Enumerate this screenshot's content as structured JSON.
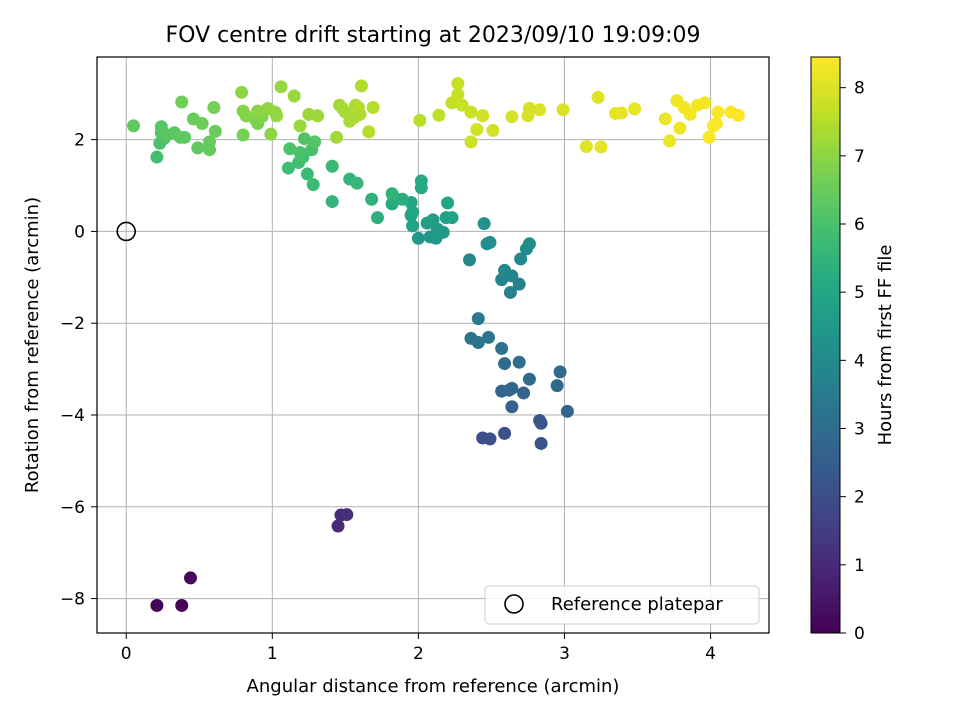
{
  "chart_data": {
    "type": "scatter",
    "title": "FOV centre drift starting at 2023/09/10 19:09:09",
    "xlabel": "Angular distance from reference (arcmin)",
    "ylabel": "Rotation from reference (arcmin)",
    "xlim": [
      -0.2,
      4.4
    ],
    "ylim": [
      -8.75,
      3.8
    ],
    "xticks": [
      0,
      1,
      2,
      3,
      4
    ],
    "yticks": [
      -8,
      -6,
      -4,
      -2,
      0,
      2
    ],
    "xtick_labels": [
      "0",
      "1",
      "2",
      "3",
      "4"
    ],
    "ytick_labels": [
      "−8",
      "−6",
      "−4",
      "−2",
      "0",
      "2"
    ],
    "grid": true,
    "colormap": "viridis",
    "colorbar": {
      "label": "Hours from first FF file",
      "range": [
        0,
        8.45
      ],
      "ticks": [
        0,
        1,
        2,
        3,
        4,
        5,
        6,
        7,
        8
      ],
      "tick_labels": [
        "0",
        "1",
        "2",
        "3",
        "4",
        "5",
        "6",
        "7",
        "8"
      ]
    },
    "legend": {
      "position": "lower-right",
      "entries": [
        {
          "label": "Reference platepar",
          "marker": "open-circle"
        }
      ]
    },
    "reference_point": {
      "x": 0,
      "y": 0
    },
    "points": [
      {
        "x": 0.21,
        "y": -8.15,
        "c": 0.05
      },
      {
        "x": 0.38,
        "y": -8.15,
        "c": 0.1
      },
      {
        "x": 0.44,
        "y": -7.55,
        "c": 0.2
      },
      {
        "x": 1.45,
        "y": -6.42,
        "c": 1.0
      },
      {
        "x": 1.47,
        "y": -6.18,
        "c": 1.05
      },
      {
        "x": 1.51,
        "y": -6.17,
        "c": 1.1
      },
      {
        "x": 2.44,
        "y": -4.5,
        "c": 2.0
      },
      {
        "x": 2.49,
        "y": -4.52,
        "c": 2.05
      },
      {
        "x": 2.59,
        "y": -4.4,
        "c": 2.1
      },
      {
        "x": 2.83,
        "y": -4.12,
        "c": 2.2
      },
      {
        "x": 2.84,
        "y": -4.62,
        "c": 2.15
      },
      {
        "x": 2.84,
        "y": -4.18,
        "c": 2.25
      },
      {
        "x": 2.64,
        "y": -3.82,
        "c": 2.6
      },
      {
        "x": 2.72,
        "y": -3.52,
        "c": 2.7
      },
      {
        "x": 2.57,
        "y": -3.48,
        "c": 2.75
      },
      {
        "x": 2.62,
        "y": -3.46,
        "c": 2.8
      },
      {
        "x": 2.64,
        "y": -3.42,
        "c": 2.8
      },
      {
        "x": 2.76,
        "y": -3.22,
        "c": 2.9
      },
      {
        "x": 2.95,
        "y": -3.36,
        "c": 2.85
      },
      {
        "x": 2.97,
        "y": -3.06,
        "c": 2.95
      },
      {
        "x": 3.02,
        "y": -3.92,
        "c": 2.7
      },
      {
        "x": 2.59,
        "y": -2.88,
        "c": 3.0
      },
      {
        "x": 2.69,
        "y": -2.85,
        "c": 3.05
      },
      {
        "x": 2.57,
        "y": -2.55,
        "c": 3.1
      },
      {
        "x": 2.36,
        "y": -2.33,
        "c": 3.2
      },
      {
        "x": 2.41,
        "y": -2.42,
        "c": 3.25
      },
      {
        "x": 2.48,
        "y": -2.31,
        "c": 3.3
      },
      {
        "x": 2.41,
        "y": -1.9,
        "c": 3.4
      },
      {
        "x": 2.63,
        "y": -1.33,
        "c": 3.6
      },
      {
        "x": 2.69,
        "y": -1.15,
        "c": 3.7
      },
      {
        "x": 2.57,
        "y": -1.05,
        "c": 3.75
      },
      {
        "x": 2.64,
        "y": -0.97,
        "c": 3.8
      },
      {
        "x": 2.59,
        "y": -0.85,
        "c": 3.85
      },
      {
        "x": 2.7,
        "y": -0.6,
        "c": 3.9
      },
      {
        "x": 2.35,
        "y": -0.62,
        "c": 3.95
      },
      {
        "x": 2.74,
        "y": -0.38,
        "c": 4.0
      },
      {
        "x": 2.76,
        "y": -0.27,
        "c": 4.1
      },
      {
        "x": 2.47,
        "y": -0.27,
        "c": 4.15
      },
      {
        "x": 2.49,
        "y": -0.24,
        "c": 4.2
      },
      {
        "x": 2.45,
        "y": 0.17,
        "c": 4.3
      },
      {
        "x": 2.0,
        "y": -0.15,
        "c": 4.4
      },
      {
        "x": 2.08,
        "y": -0.12,
        "c": 4.45
      },
      {
        "x": 2.12,
        "y": -0.15,
        "c": 4.5
      },
      {
        "x": 2.17,
        "y": -0.02,
        "c": 4.55
      },
      {
        "x": 2.13,
        "y": 0.05,
        "c": 4.6
      },
      {
        "x": 2.06,
        "y": 0.18,
        "c": 4.65
      },
      {
        "x": 2.1,
        "y": 0.25,
        "c": 4.7
      },
      {
        "x": 2.19,
        "y": 0.3,
        "c": 4.75
      },
      {
        "x": 2.23,
        "y": 0.3,
        "c": 4.8
      },
      {
        "x": 1.96,
        "y": 0.12,
        "c": 4.85
      },
      {
        "x": 1.95,
        "y": 0.35,
        "c": 4.9
      },
      {
        "x": 1.96,
        "y": 0.42,
        "c": 4.95
      },
      {
        "x": 1.95,
        "y": 0.63,
        "c": 5.0
      },
      {
        "x": 2.2,
        "y": 0.62,
        "c": 5.05
      },
      {
        "x": 2.02,
        "y": 0.95,
        "c": 5.1
      },
      {
        "x": 2.02,
        "y": 1.1,
        "c": 5.15
      },
      {
        "x": 1.82,
        "y": 0.6,
        "c": 5.2
      },
      {
        "x": 1.83,
        "y": 0.75,
        "c": 5.25
      },
      {
        "x": 1.89,
        "y": 0.7,
        "c": 5.3
      },
      {
        "x": 1.72,
        "y": 0.3,
        "c": 5.35
      },
      {
        "x": 1.68,
        "y": 0.7,
        "c": 5.4
      },
      {
        "x": 1.82,
        "y": 0.82,
        "c": 5.45
      },
      {
        "x": 1.41,
        "y": 0.65,
        "c": 5.5
      },
      {
        "x": 1.53,
        "y": 1.14,
        "c": 5.55
      },
      {
        "x": 1.58,
        "y": 1.05,
        "c": 5.6
      },
      {
        "x": 1.41,
        "y": 1.42,
        "c": 5.65
      },
      {
        "x": 1.24,
        "y": 1.25,
        "c": 5.7
      },
      {
        "x": 1.28,
        "y": 1.02,
        "c": 5.75
      },
      {
        "x": 1.11,
        "y": 1.38,
        "c": 5.8
      },
      {
        "x": 1.18,
        "y": 1.5,
        "c": 5.85
      },
      {
        "x": 1.21,
        "y": 1.62,
        "c": 5.9
      },
      {
        "x": 1.27,
        "y": 1.78,
        "c": 5.95
      },
      {
        "x": 1.19,
        "y": 1.72,
        "c": 6.0
      },
      {
        "x": 1.12,
        "y": 1.8,
        "c": 6.05
      },
      {
        "x": 1.22,
        "y": 2.02,
        "c": 6.1
      },
      {
        "x": 1.29,
        "y": 1.95,
        "c": 6.15
      },
      {
        "x": 0.21,
        "y": 1.62,
        "c": 5.9
      },
      {
        "x": 0.23,
        "y": 1.92,
        "c": 6.0
      },
      {
        "x": 0.26,
        "y": 2.03,
        "c": 6.1
      },
      {
        "x": 0.24,
        "y": 2.15,
        "c": 6.2
      },
      {
        "x": 0.24,
        "y": 2.28,
        "c": 6.2
      },
      {
        "x": 0.28,
        "y": 2.1,
        "c": 6.25
      },
      {
        "x": 0.33,
        "y": 2.15,
        "c": 6.3
      },
      {
        "x": 0.37,
        "y": 2.05,
        "c": 6.3
      },
      {
        "x": 0.4,
        "y": 2.05,
        "c": 6.35
      },
      {
        "x": 0.05,
        "y": 2.3,
        "c": 6.4
      },
      {
        "x": 0.49,
        "y": 1.82,
        "c": 6.35
      },
      {
        "x": 0.57,
        "y": 1.78,
        "c": 6.4
      },
      {
        "x": 0.57,
        "y": 1.95,
        "c": 6.45
      },
      {
        "x": 0.61,
        "y": 2.18,
        "c": 6.5
      },
      {
        "x": 0.46,
        "y": 2.45,
        "c": 6.5
      },
      {
        "x": 0.52,
        "y": 2.35,
        "c": 6.55
      },
      {
        "x": 0.38,
        "y": 2.82,
        "c": 6.6
      },
      {
        "x": 0.6,
        "y": 2.7,
        "c": 6.65
      },
      {
        "x": 0.8,
        "y": 2.1,
        "c": 6.7
      },
      {
        "x": 0.9,
        "y": 2.35,
        "c": 6.75
      },
      {
        "x": 0.88,
        "y": 2.45,
        "c": 6.8
      },
      {
        "x": 0.93,
        "y": 2.5,
        "c": 6.85
      },
      {
        "x": 0.8,
        "y": 2.62,
        "c": 6.9
      },
      {
        "x": 0.82,
        "y": 2.52,
        "c": 6.9
      },
      {
        "x": 0.9,
        "y": 2.62,
        "c": 6.95
      },
      {
        "x": 0.79,
        "y": 3.03,
        "c": 7.0
      },
      {
        "x": 0.99,
        "y": 2.12,
        "c": 7.0
      },
      {
        "x": 0.97,
        "y": 2.68,
        "c": 7.05
      },
      {
        "x": 1.02,
        "y": 2.6,
        "c": 7.05
      },
      {
        "x": 1.03,
        "y": 2.52,
        "c": 7.1
      },
      {
        "x": 1.06,
        "y": 3.15,
        "c": 7.1
      },
      {
        "x": 1.15,
        "y": 2.95,
        "c": 7.15
      },
      {
        "x": 1.19,
        "y": 2.3,
        "c": 7.15
      },
      {
        "x": 1.25,
        "y": 2.55,
        "c": 7.2
      },
      {
        "x": 1.31,
        "y": 2.52,
        "c": 7.2
      },
      {
        "x": 1.44,
        "y": 2.05,
        "c": 7.25
      },
      {
        "x": 1.46,
        "y": 2.75,
        "c": 7.25
      },
      {
        "x": 1.48,
        "y": 2.68,
        "c": 7.3
      },
      {
        "x": 1.5,
        "y": 2.6,
        "c": 7.3
      },
      {
        "x": 1.53,
        "y": 2.4,
        "c": 7.35
      },
      {
        "x": 1.56,
        "y": 2.48,
        "c": 7.35
      },
      {
        "x": 1.57,
        "y": 2.75,
        "c": 7.4
      },
      {
        "x": 1.6,
        "y": 2.55,
        "c": 7.4
      },
      {
        "x": 1.61,
        "y": 3.17,
        "c": 7.45
      },
      {
        "x": 1.59,
        "y": 2.7,
        "c": 7.45
      },
      {
        "x": 1.66,
        "y": 2.17,
        "c": 7.5
      },
      {
        "x": 1.69,
        "y": 2.7,
        "c": 7.5
      },
      {
        "x": 2.01,
        "y": 2.42,
        "c": 7.55
      },
      {
        "x": 2.14,
        "y": 2.53,
        "c": 7.6
      },
      {
        "x": 2.23,
        "y": 2.8,
        "c": 7.65
      },
      {
        "x": 2.26,
        "y": 2.85,
        "c": 7.7
      },
      {
        "x": 2.27,
        "y": 2.98,
        "c": 7.7
      },
      {
        "x": 2.27,
        "y": 3.22,
        "c": 7.75
      },
      {
        "x": 2.3,
        "y": 2.75,
        "c": 7.75
      },
      {
        "x": 2.36,
        "y": 2.6,
        "c": 7.8
      },
      {
        "x": 2.36,
        "y": 1.95,
        "c": 7.8
      },
      {
        "x": 2.4,
        "y": 2.22,
        "c": 7.85
      },
      {
        "x": 2.44,
        "y": 2.52,
        "c": 7.85
      },
      {
        "x": 2.51,
        "y": 2.2,
        "c": 7.9
      },
      {
        "x": 2.64,
        "y": 2.5,
        "c": 7.9
      },
      {
        "x": 2.75,
        "y": 2.52,
        "c": 7.95
      },
      {
        "x": 2.76,
        "y": 2.68,
        "c": 7.95
      },
      {
        "x": 2.83,
        "y": 2.65,
        "c": 8.0
      },
      {
        "x": 2.99,
        "y": 2.65,
        "c": 8.0
      },
      {
        "x": 3.15,
        "y": 1.85,
        "c": 8.05
      },
      {
        "x": 3.23,
        "y": 2.92,
        "c": 8.05
      },
      {
        "x": 3.25,
        "y": 1.84,
        "c": 8.1
      },
      {
        "x": 3.35,
        "y": 2.57,
        "c": 8.1
      },
      {
        "x": 3.39,
        "y": 2.58,
        "c": 8.15
      },
      {
        "x": 3.48,
        "y": 2.67,
        "c": 8.15
      },
      {
        "x": 3.69,
        "y": 2.45,
        "c": 8.2
      },
      {
        "x": 3.72,
        "y": 1.97,
        "c": 8.2
      },
      {
        "x": 3.77,
        "y": 2.85,
        "c": 8.25
      },
      {
        "x": 3.79,
        "y": 2.25,
        "c": 8.25
      },
      {
        "x": 3.82,
        "y": 2.7,
        "c": 8.3
      },
      {
        "x": 3.86,
        "y": 2.55,
        "c": 8.3
      },
      {
        "x": 3.91,
        "y": 2.75,
        "c": 8.35
      },
      {
        "x": 3.96,
        "y": 2.8,
        "c": 8.35
      },
      {
        "x": 3.99,
        "y": 2.05,
        "c": 8.4
      },
      {
        "x": 4.02,
        "y": 2.3,
        "c": 8.4
      },
      {
        "x": 4.05,
        "y": 2.6,
        "c": 8.4
      },
      {
        "x": 4.04,
        "y": 2.35,
        "c": 8.42
      },
      {
        "x": 4.14,
        "y": 2.6,
        "c": 8.43
      },
      {
        "x": 4.19,
        "y": 2.53,
        "c": 8.45
      }
    ]
  }
}
